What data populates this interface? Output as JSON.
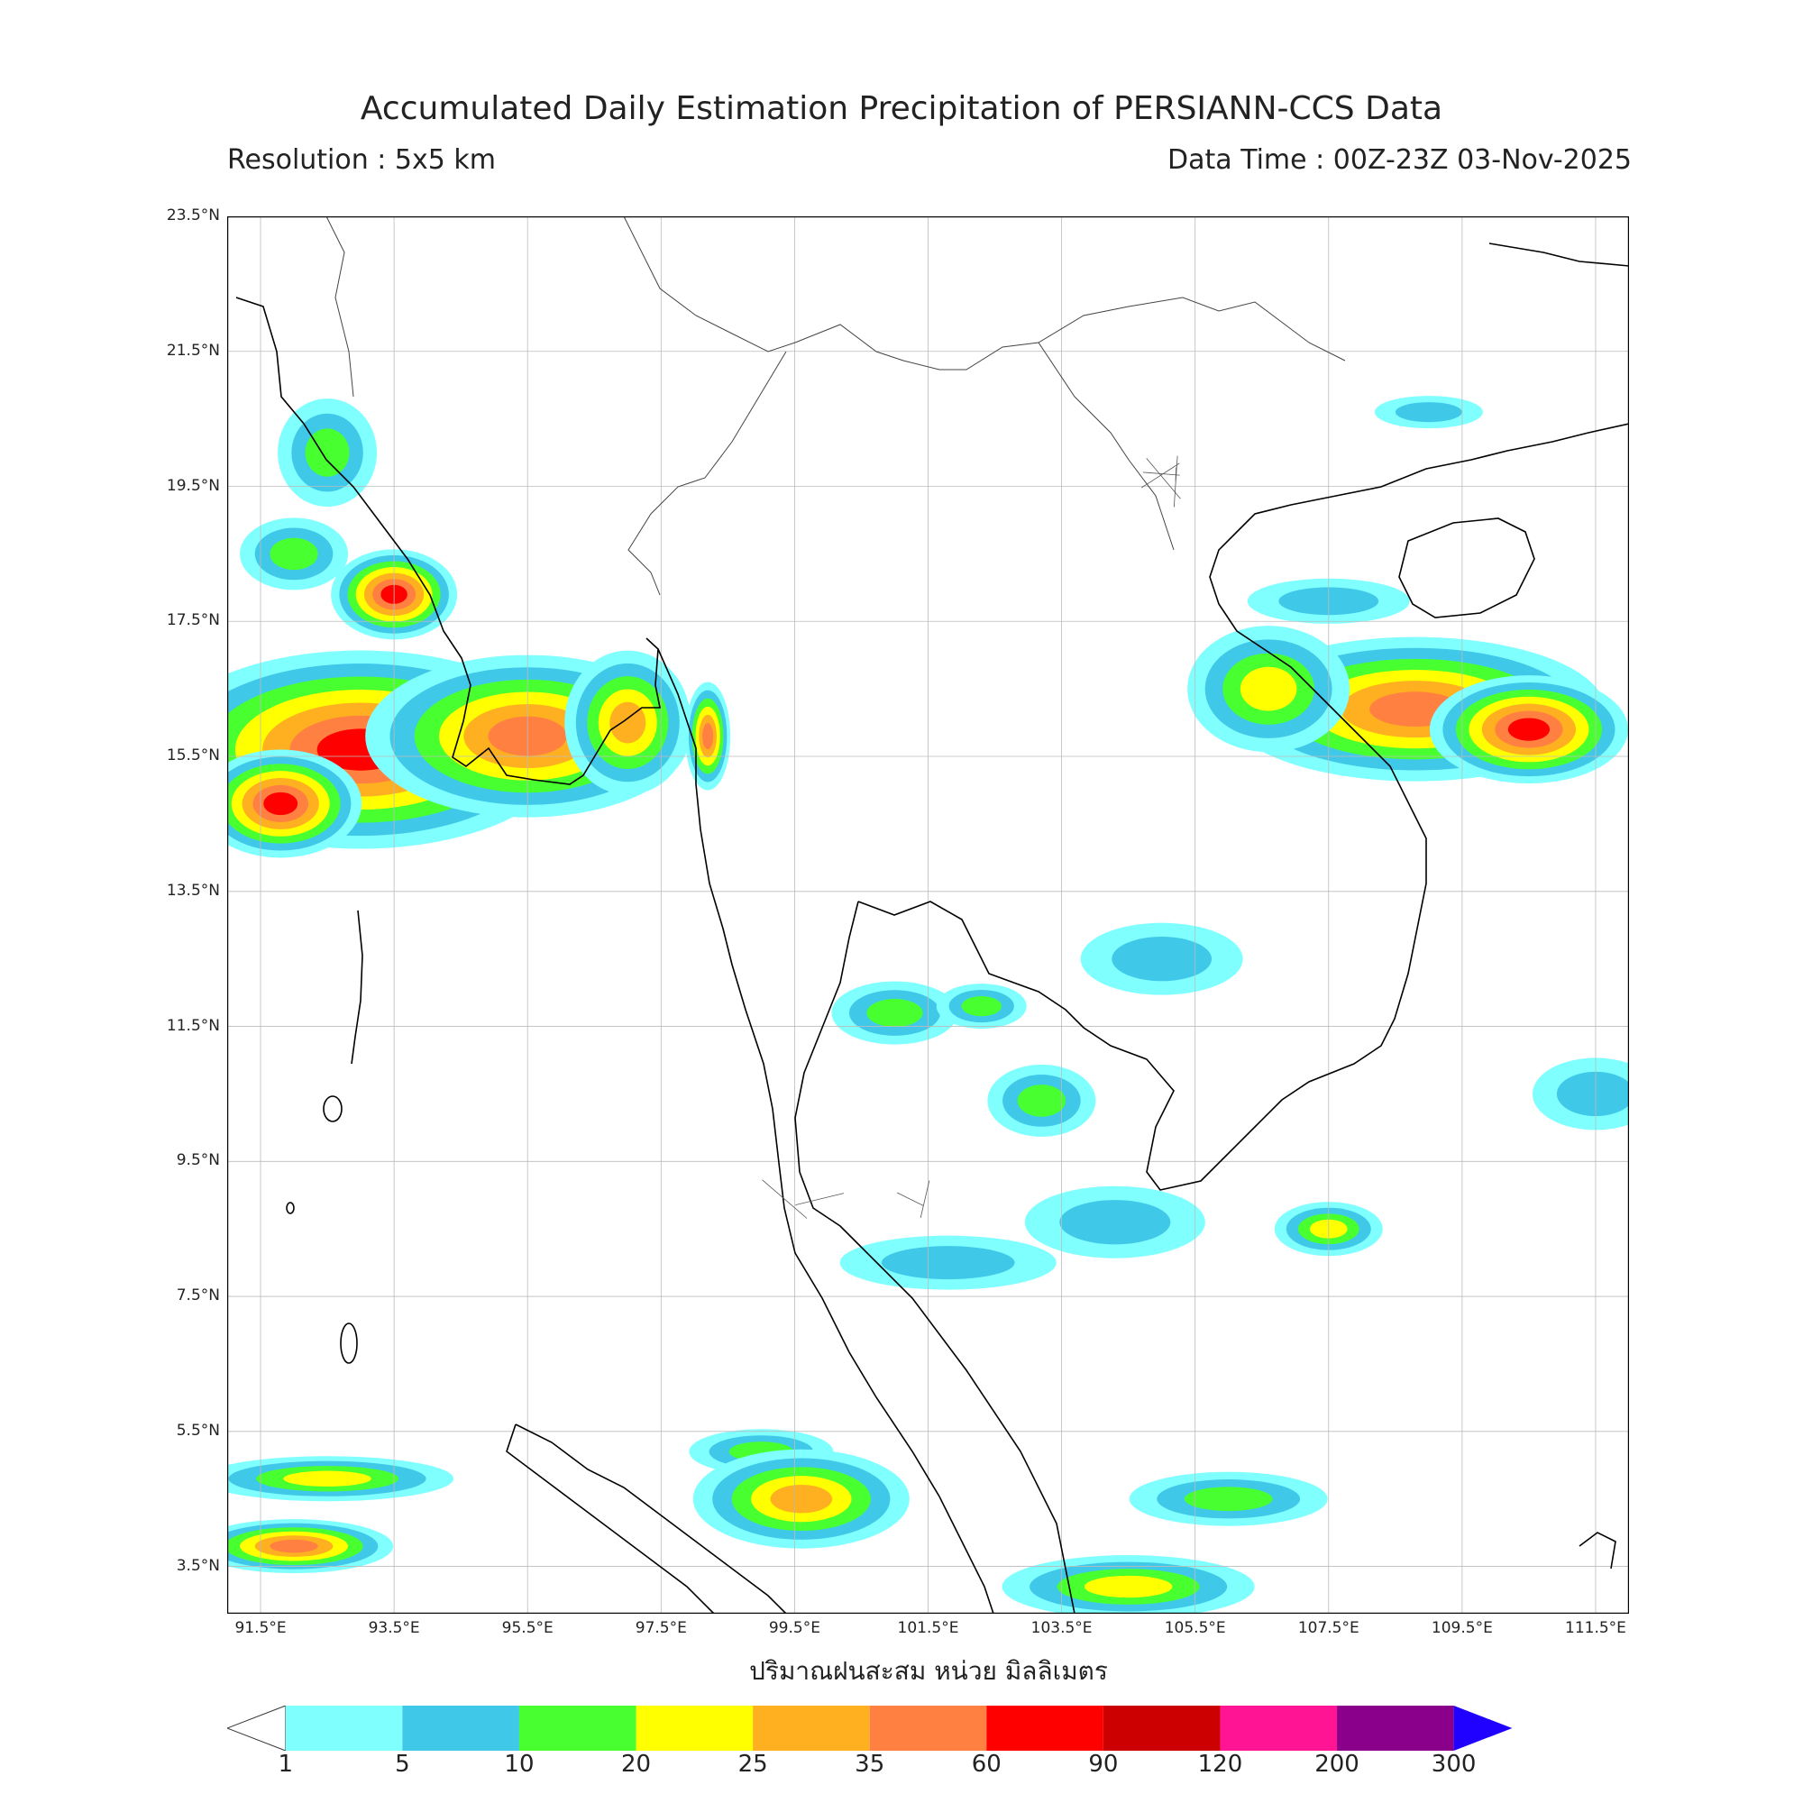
{
  "header": {
    "title": "Accumulated Daily Estimation Precipitation of PERSIANN-CCS Data",
    "resolution": "Resolution : 5x5 km",
    "data_time": "Data Time : 00Z-23Z 03-Nov-2025"
  },
  "map": {
    "lat_range": [
      2.8,
      23.5
    ],
    "lon_range": [
      91.0,
      112.0
    ],
    "lat_ticks": [
      "23.5°N",
      "21.5°N",
      "19.5°N",
      "17.5°N",
      "15.5°N",
      "13.5°N",
      "11.5°N",
      "9.5°N",
      "7.5°N",
      "5.5°N",
      "3.5°N"
    ],
    "lon_ticks": [
      "91.5°E",
      "93.5°E",
      "95.5°E",
      "97.5°E",
      "99.5°E",
      "101.5°E",
      "103.5°E",
      "105.5°E",
      "107.5°E",
      "109.5°E",
      "111.5°E"
    ],
    "x_axis_title": "ปริมาณฝนสะสม หน่วย มิลลิเมตร",
    "grid": true
  },
  "colorbar": {
    "levels": [
      "1",
      "5",
      "10",
      "20",
      "25",
      "35",
      "60",
      "90",
      "120",
      "200",
      "300"
    ],
    "colors": [
      "#80ffff",
      "#40c8e8",
      "#48ff30",
      "#ffff00",
      "#ffb020",
      "#ff8040",
      "#ff0000",
      "#cc0000",
      "#ff1493",
      "#8b008b"
    ],
    "under_color": "#ffffff",
    "over_color": "#2000ff"
  }
}
